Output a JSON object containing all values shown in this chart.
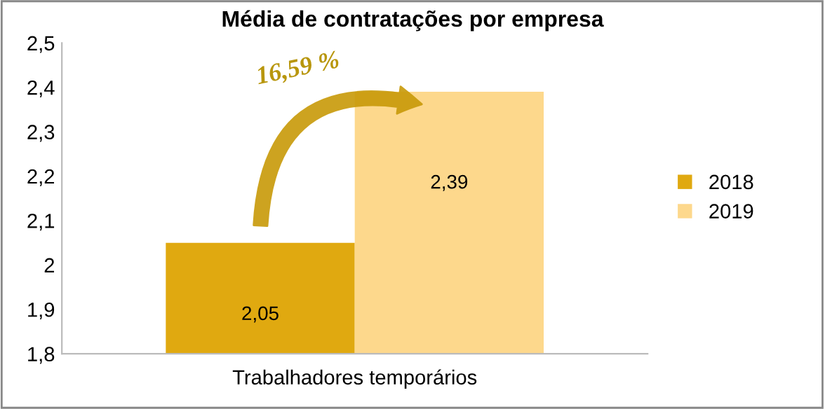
{
  "chart_data": {
    "type": "bar",
    "title": "Média de contratações por empresa",
    "categories": [
      "Trabalhadores temporários"
    ],
    "series": [
      {
        "name": "2018",
        "color": "#e0a910",
        "values": [
          2.05
        ],
        "value_labels": [
          "2,05"
        ]
      },
      {
        "name": "2019",
        "color": "#fdd88c",
        "values": [
          2.39
        ],
        "value_labels": [
          "2,39"
        ]
      }
    ],
    "ylim": [
      1.8,
      2.5
    ],
    "yticks": [
      {
        "value": 1.8,
        "label": "1,8"
      },
      {
        "value": 1.9,
        "label": "1,9"
      },
      2,
      {
        "value": 2.1,
        "label": "2,1"
      },
      {
        "value": 2.2,
        "label": "2,2"
      },
      {
        "value": 2.3,
        "label": "2,3"
      },
      {
        "value": 2.4,
        "label": "2,4"
      },
      {
        "value": 2.5,
        "label": "2,5"
      }
    ],
    "annotations": [
      "16,59 %"
    ],
    "legend": "right",
    "grid": false
  }
}
